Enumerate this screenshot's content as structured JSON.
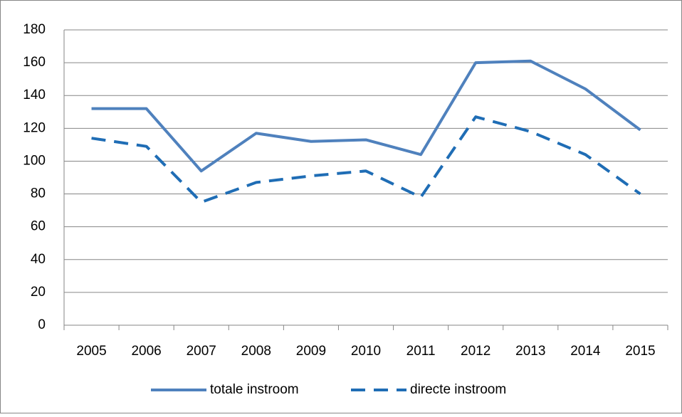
{
  "chart_data": {
    "type": "line",
    "categories": [
      "2005",
      "2006",
      "2007",
      "2008",
      "2009",
      "2010",
      "2011",
      "2012",
      "2013",
      "2014",
      "2015"
    ],
    "series": [
      {
        "name": "totale instroom",
        "color": "#4f81bd",
        "dash": false,
        "values": [
          132,
          132,
          94,
          117,
          112,
          113,
          104,
          160,
          161,
          144,
          119
        ]
      },
      {
        "name": "directe instroom",
        "color": "#1f6db5",
        "dash": true,
        "values": [
          114,
          109,
          75,
          87,
          91,
          94,
          78,
          127,
          118,
          104,
          80
        ]
      }
    ],
    "ylim": [
      0,
      180
    ],
    "yticks": [
      0,
      20,
      40,
      60,
      80,
      100,
      120,
      140,
      160,
      180
    ],
    "grid": true,
    "legend": "bottom"
  }
}
